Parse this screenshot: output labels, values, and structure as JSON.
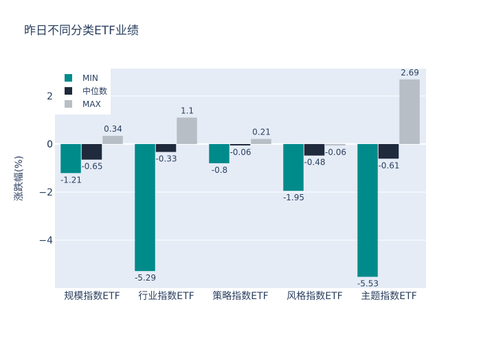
{
  "chart_data": {
    "type": "bar",
    "title": "昨日不同分类ETF业绩",
    "xlabel": "",
    "ylabel": "涨跌幅(%)",
    "ylim": [
      -6.0,
      3.14
    ],
    "yticks": [
      -4,
      -2,
      0,
      2
    ],
    "grid": true,
    "legend_position": "top-left",
    "categories": [
      "规模指数ETF",
      "行业指数ETF",
      "策略指数ETF",
      "风格指数ETF",
      "主题指数ETF"
    ],
    "series": [
      {
        "name": "MIN",
        "color": "#008b8b",
        "values": [
          -1.21,
          -5.29,
          -0.8,
          -1.95,
          -5.53
        ]
      },
      {
        "name": "中位数",
        "color": "#1f2a3c",
        "values": [
          -0.65,
          -0.33,
          -0.06,
          -0.48,
          -0.61
        ]
      },
      {
        "name": "MAX",
        "color": "#b8bec6",
        "values": [
          0.34,
          1.1,
          0.21,
          -0.06,
          2.69
        ]
      }
    ]
  }
}
